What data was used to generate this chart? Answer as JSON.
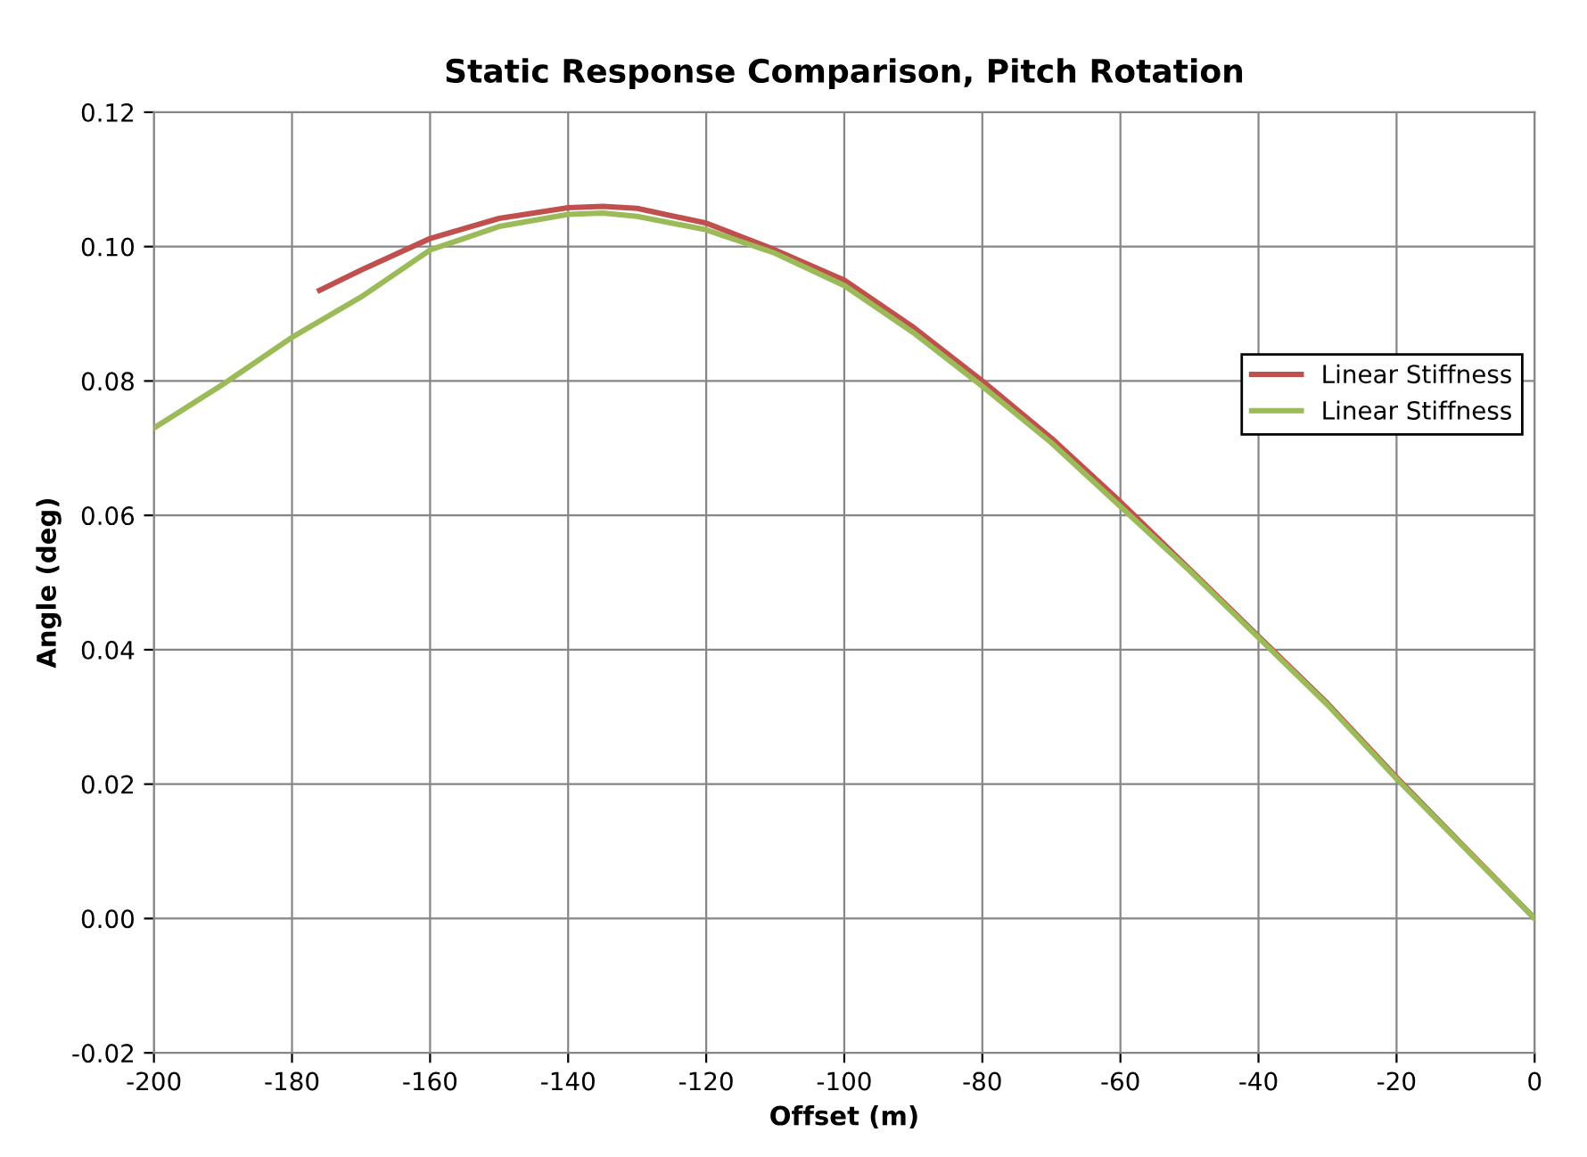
{
  "chart_data": {
    "type": "line",
    "title": "Static Response Comparison, Pitch Rotation",
    "xlabel": "Offset (m)",
    "ylabel": "Angle (deg)",
    "xlim": [
      -200,
      0
    ],
    "xticks": [
      -200,
      -180,
      -160,
      -140,
      -120,
      -100,
      -80,
      -60,
      -40,
      -20,
      0
    ],
    "ylim": [
      -0.02,
      0.12
    ],
    "yticks": [
      {
        "value": -0.02,
        "label": "-0.02"
      },
      {
        "value": 0,
        "label": "0.00"
      },
      {
        "value": 0.02,
        "label": "0.02"
      },
      {
        "value": 0.04,
        "label": "0.04"
      },
      {
        "value": 0.06,
        "label": "0.06"
      },
      {
        "value": 0.08,
        "label": "0.08"
      },
      {
        "value": 0.1,
        "label": "0.10"
      },
      {
        "value": 0.12,
        "label": "0.12"
      }
    ],
    "grid": true,
    "legend": "right",
    "marker": "none",
    "line_style": "solid",
    "series": [
      {
        "name": "Linear Stiffness",
        "color": "#c0504d",
        "x": [
          -176,
          -170,
          -160,
          -150,
          -140,
          -135,
          -130,
          -120,
          -110,
          -100,
          -90,
          -80,
          -70,
          -60,
          -50,
          -40,
          -30,
          -20,
          -10,
          0
        ],
        "values": [
          0.0935,
          0.0965,
          0.1012,
          0.1042,
          0.1058,
          0.106,
          0.1057,
          0.1035,
          0.0995,
          0.095,
          0.088,
          0.08,
          0.0715,
          0.062,
          0.052,
          0.042,
          0.032,
          0.021,
          0.0105,
          0
        ]
      },
      {
        "name": "Linear Stiffness",
        "color": "#9bbb59",
        "x": [
          -200,
          -190,
          -180,
          -170,
          -160,
          -150,
          -140,
          -135,
          -130,
          -120,
          -110,
          -100,
          -90,
          -80,
          -70,
          -60,
          -50,
          -40,
          -30,
          -20,
          -10,
          0
        ],
        "values": [
          0.073,
          0.0795,
          0.0865,
          0.0925,
          0.0995,
          0.103,
          0.1048,
          0.105,
          0.1045,
          0.1025,
          0.099,
          0.0942,
          0.0872,
          0.0792,
          0.0708,
          0.0613,
          0.0518,
          0.0418,
          0.0318,
          0.0208,
          0.0104,
          0
        ]
      }
    ]
  }
}
